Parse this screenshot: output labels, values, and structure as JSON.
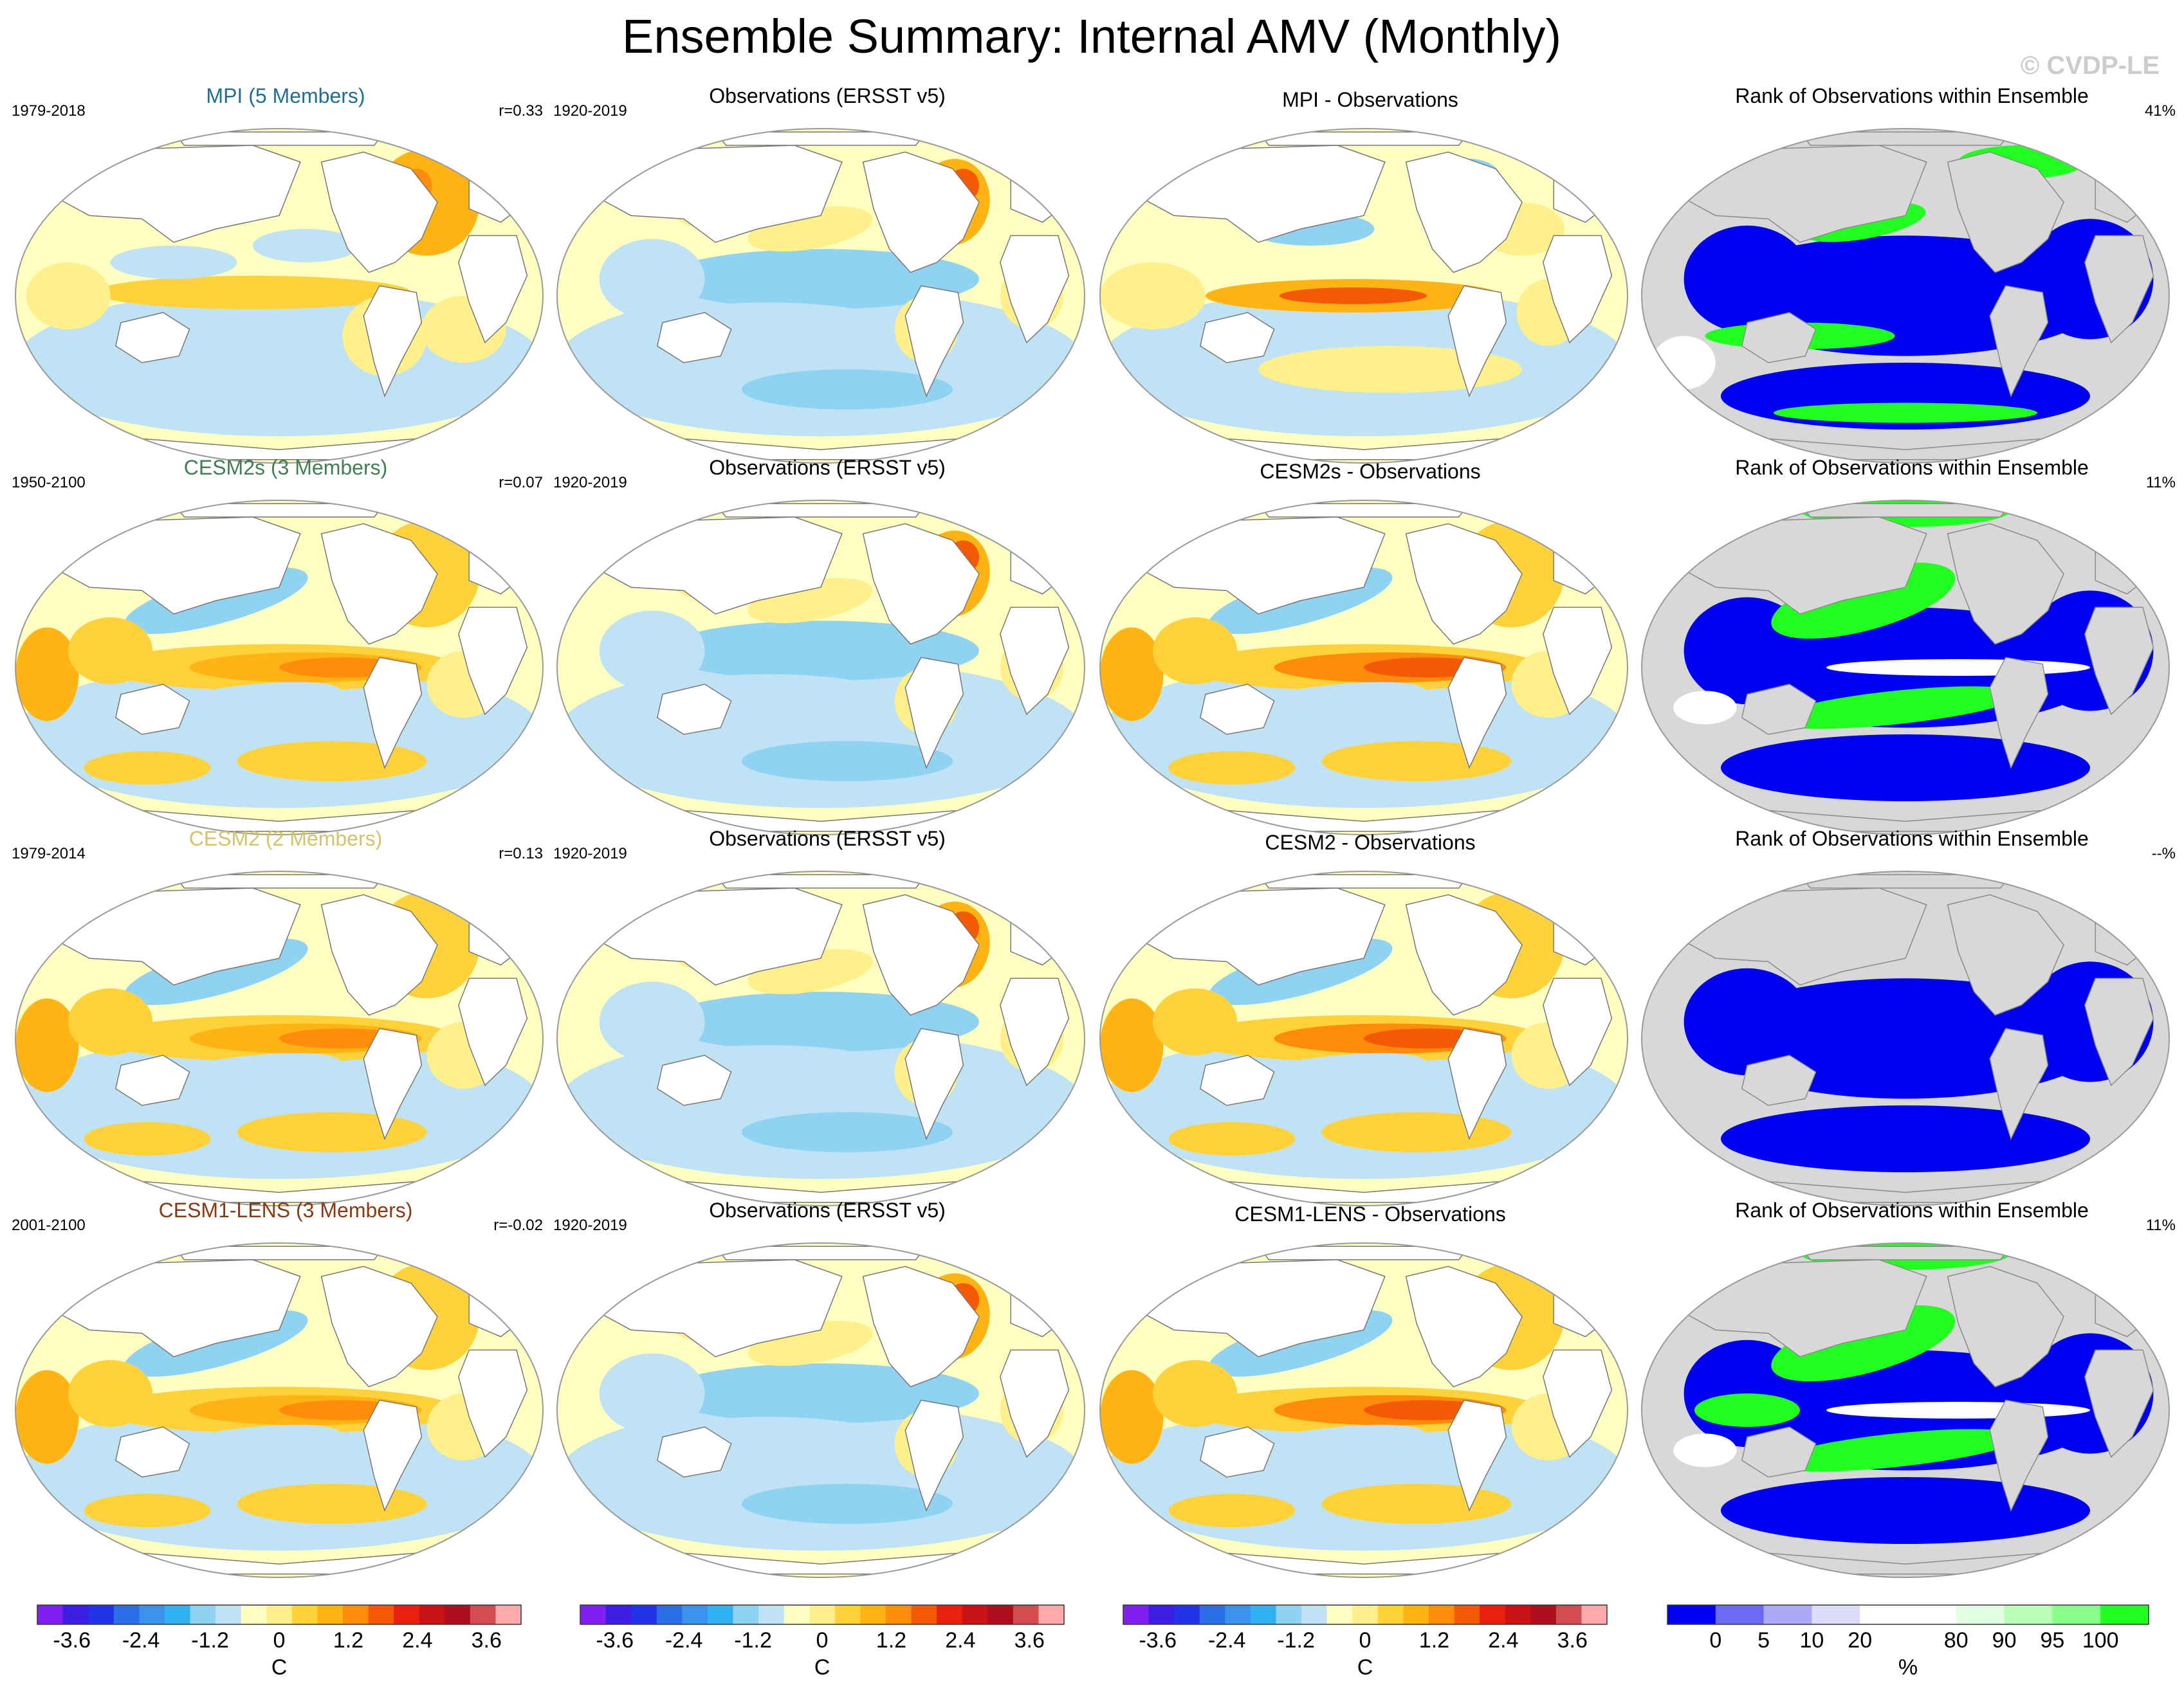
{
  "title": "Ensemble Summary: Internal AMV (Monthly)",
  "watermark": "© CVDP-LE",
  "colors": {
    "sst": [
      "#7f1ff0",
      "#3c1ee0",
      "#2233e6",
      "#2a6fe8",
      "#3a92ee",
      "#30b2f2",
      "#8fd2f2",
      "#bfe3f5",
      "#ffffc2",
      "#fff08c",
      "#ffd23c",
      "#ffb414",
      "#ff8c0a",
      "#f45a06",
      "#e6220e",
      "#c81414",
      "#ad0f1e",
      "#d24c50",
      "#ffaaaa"
    ],
    "rank": [
      "#0000f0",
      "#6a6af5",
      "#aaaaf8",
      "#ddddfa",
      "#ffffff",
      "#ffffff",
      "#e2ffe2",
      "#b8ffb8",
      "#88ff88",
      "#20ff20"
    ],
    "land": "#d8d8d8",
    "text_colors": {
      "mpi": "#1f6f95",
      "cesm2s": "#3f7f52",
      "cesm2": "#d4c26c",
      "cesm1lens": "#8a3a12"
    }
  },
  "panels": [
    {
      "row": 1,
      "model": {
        "title": "MPI (5 Members)",
        "color_key": "mpi",
        "years": "1979-2018",
        "r": "r=0.33"
      },
      "obs": {
        "title": "Observations (ERSST v5)",
        "years": "1920-2019"
      },
      "diff": {
        "title": "MPI - Observations"
      },
      "rank": {
        "title": "Rank of Observations within Ensemble",
        "pct": "41%"
      }
    },
    {
      "row": 2,
      "model": {
        "title": "CESM2s (3 Members)",
        "color_key": "cesm2s",
        "years": "1950-2100",
        "r": "r=0.07"
      },
      "obs": {
        "title": "Observations (ERSST v5)",
        "years": "1920-2019"
      },
      "diff": {
        "title": "CESM2s - Observations"
      },
      "rank": {
        "title": "Rank of Observations within Ensemble",
        "pct": "11%"
      }
    },
    {
      "row": 3,
      "model": {
        "title": "CESM2 (2 Members)",
        "color_key": "cesm2",
        "years": "1979-2014",
        "r": "r=0.13"
      },
      "obs": {
        "title": "Observations (ERSST v5)",
        "years": "1920-2019"
      },
      "diff": {
        "title": "CESM2 - Observations"
      },
      "rank": {
        "title": "Rank of Observations within Ensemble",
        "pct": "--%"
      }
    },
    {
      "row": 4,
      "model": {
        "title": "CESM1-LENS (3 Members)",
        "color_key": "cesm1lens",
        "years": "2001-2100",
        "r": "r=-0.02"
      },
      "obs": {
        "title": "Observations (ERSST v5)",
        "years": "1920-2019"
      },
      "diff": {
        "title": "CESM1-LENS - Observations"
      },
      "rank": {
        "title": "Rank of Observations within Ensemble",
        "pct": "11%"
      }
    }
  ],
  "chart_data": {
    "type": "heatmap",
    "description_of_layout": "4 rows x 4 columns of global map panels",
    "sst_colorbar": {
      "unit": "C",
      "ticks": [
        "-3.6",
        "-2.4",
        "-1.2",
        "0",
        "1.2",
        "2.4",
        "3.6"
      ],
      "tick_values": [
        -3.6,
        -2.4,
        -1.2,
        0,
        1.2,
        2.4,
        3.6
      ],
      "range": [
        -4.2,
        4.2
      ]
    },
    "rank_colorbar": {
      "unit": "%",
      "ticks": [
        "0",
        "5",
        "10",
        "20",
        "80",
        "90",
        "95",
        "100"
      ]
    },
    "pattern_correlations": [
      {
        "model": "MPI",
        "r": 0.33
      },
      {
        "model": "CESM2s",
        "r": 0.07
      },
      {
        "model": "CESM2",
        "r": 0.13
      },
      {
        "model": "CESM1-LENS",
        "r": -0.02
      }
    ],
    "rank_area_percent": [
      {
        "model": "MPI",
        "value": "41%"
      },
      {
        "model": "CESM2s",
        "value": "11%"
      },
      {
        "model": "CESM2",
        "value": "--%"
      },
      {
        "model": "CESM1-LENS",
        "value": "11%"
      }
    ]
  }
}
